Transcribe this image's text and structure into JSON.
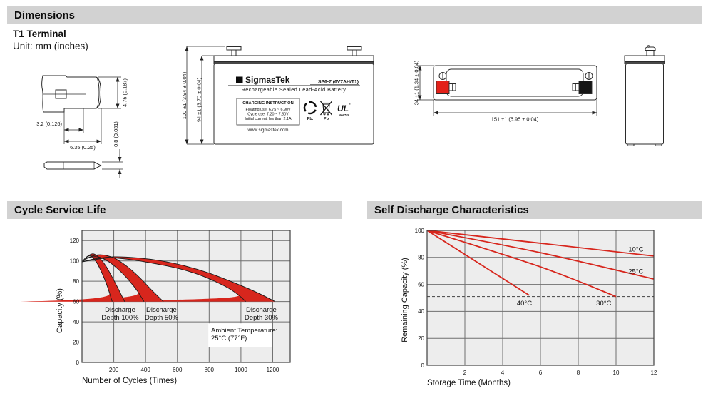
{
  "colors": {
    "bar_bg": "#d2d2d2",
    "curve_red": "#d7261d",
    "terminal_red": "#e32119",
    "plot_bg": "#ededed",
    "grid": "#6f6f6f"
  },
  "sections": {
    "dimensions": {
      "header": "Dimensions",
      "terminal_type": "T1 Terminal",
      "unit_note": "Unit: mm (inches)"
    },
    "cycle": {
      "header": "Cycle Service Life"
    },
    "self_discharge": {
      "header": "Self Discharge Characteristics"
    }
  },
  "terminal_detail": {
    "tab_height": "4.75 (0.187)",
    "hole_offset": "3.2 (0.126)",
    "tab_width": "6.35 (0.25)",
    "tab_thickness": "0.8 (0.031)"
  },
  "front_view": {
    "overall_height": "100 ±1 (3.94 ± 0.04)",
    "case_height": "94 ±1 (3.70 ± 0.04)",
    "label": {
      "logo_glyph": "Σ",
      "brand": "SigmasTek",
      "model": "SP6-7 (6V7AH/T1)",
      "product_type": "Rechargeable Sealed Lead-Acid Battery",
      "charging_title": "CHARGING INSTRUCTION",
      "charging_lines": [
        "Floating use: 6.75 ~ 6.90V",
        "Cycle use: 7.20 ~ 7.50V",
        "Initial current: les than 2.1A"
      ],
      "website": "www.sigmastek.com",
      "recycle_pb": "Pb.",
      "bin_pb": "Pb",
      "ul_mark": "UL",
      "ul_code": "MH47529"
    }
  },
  "top_view": {
    "length": "151 ±1 (5.95 ± 0.04)",
    "width": "34 ±1 (1.34 ± 0.04)"
  },
  "chart_data": [
    {
      "type": "area",
      "title": "Cycle Service Life",
      "xlabel": "Number of Cycles (Times)",
      "ylabel": "Capacity (%)",
      "xlim": [
        0,
        1310
      ],
      "ylim": [
        0,
        130
      ],
      "x_gridlines": [
        200,
        400,
        600,
        800,
        1000,
        1200
      ],
      "y_gridlines": [
        20,
        40,
        60,
        80,
        100,
        120
      ],
      "x_ticklabels": [
        200,
        400,
        600,
        800,
        1000,
        1200
      ],
      "y_ticklabels": [
        0,
        20,
        40,
        60,
        80,
        100,
        120
      ],
      "grid": true,
      "bands": [
        {
          "name": "Discharge Depth 100%",
          "upper": [
            [
              0,
              99
            ],
            [
              30,
              104
            ],
            [
              70,
              107
            ],
            [
              110,
              103
            ],
            [
              150,
              95
            ],
            [
              190,
              84
            ],
            [
              230,
              72
            ],
            [
              268,
              60
            ]
          ],
          "lower": [
            [
              0,
              99
            ],
            [
              25,
              103
            ],
            [
              55,
              105
            ],
            [
              90,
              99
            ],
            [
              120,
              90
            ],
            [
              150,
              79
            ],
            [
              172,
              69
            ],
            [
              190,
              60
            ]
          ]
        },
        {
          "name": "Discharge Depth 50%",
          "upper": [
            [
              0,
              99
            ],
            [
              50,
              104
            ],
            [
              120,
              106
            ],
            [
              200,
              103
            ],
            [
              280,
              95
            ],
            [
              360,
              84
            ],
            [
              440,
              71
            ],
            [
              512,
              60
            ]
          ],
          "lower": [
            [
              0,
              99
            ],
            [
              40,
              103
            ],
            [
              100,
              104
            ],
            [
              170,
              99
            ],
            [
              240,
              90
            ],
            [
              300,
              80
            ],
            [
              350,
              70
            ],
            [
              390,
              60
            ]
          ]
        },
        {
          "name": "Discharge Depth 30%",
          "upper": [
            [
              0,
              99
            ],
            [
              80,
              102
            ],
            [
              200,
              104
            ],
            [
              350,
              103
            ],
            [
              500,
              100
            ],
            [
              650,
              95
            ],
            [
              800,
              88
            ],
            [
              950,
              79
            ],
            [
              1100,
              69
            ],
            [
              1215,
              60
            ]
          ],
          "lower": [
            [
              0,
              99
            ],
            [
              70,
              101
            ],
            [
              180,
              103
            ],
            [
              320,
              101
            ],
            [
              470,
              97
            ],
            [
              620,
              92
            ],
            [
              760,
              85
            ],
            [
              900,
              75
            ],
            [
              980,
              67
            ],
            [
              1030,
              60
            ]
          ]
        }
      ],
      "annotations": [
        {
          "lines": [
            "Discharge",
            "Depth 100%"
          ],
          "x": 240,
          "y": 50
        },
        {
          "lines": [
            "Discharge",
            "Depth 50%"
          ],
          "x": 500,
          "y": 50
        },
        {
          "lines": [
            "Discharge",
            "Depth 30%"
          ],
          "x": 1128,
          "y": 50
        },
        {
          "lines": [
            "Ambient Temperature:",
            "25°C (77°F)"
          ],
          "x": 812,
          "y": 29.5,
          "align": "start",
          "box_rect": [
            795,
            15,
            1195,
            38.5
          ]
        }
      ]
    },
    {
      "type": "line",
      "title": "Self Discharge Characteristics",
      "xlabel": "Storage Time (Months)",
      "ylabel": "Remaining Capacity (%)",
      "xlim": [
        0,
        12
      ],
      "ylim": [
        0,
        100
      ],
      "x_gridlines": [
        2,
        4,
        6,
        8,
        10,
        12
      ],
      "y_gridlines": [
        20,
        40,
        60,
        80
      ],
      "x_ticklabels": [
        2,
        4,
        6,
        8,
        10,
        12
      ],
      "y_ticklabels": [
        0,
        20,
        40,
        60,
        80,
        100
      ],
      "grid": true,
      "dashed_y": 51,
      "series": [
        {
          "name": "10°C",
          "points": [
            [
              0,
              100
            ],
            [
              12,
              81
            ]
          ],
          "label_x": 11.05,
          "label_y": 84.5
        },
        {
          "name": "25°C",
          "points": [
            [
              0,
              100
            ],
            [
              6,
              83.5
            ],
            [
              12,
              64
            ]
          ],
          "label_x": 11.05,
          "label_y": 68
        },
        {
          "name": "30°C",
          "points": [
            [
              0,
              100
            ],
            [
              6,
              73
            ],
            [
              10,
              51
            ]
          ],
          "label_x": 9.35,
          "label_y": 44.5
        },
        {
          "name": "40°C",
          "points": [
            [
              0,
              100
            ],
            [
              5.4,
              52
            ]
          ],
          "label_x": 5.15,
          "label_y": 44.5
        }
      ]
    }
  ]
}
